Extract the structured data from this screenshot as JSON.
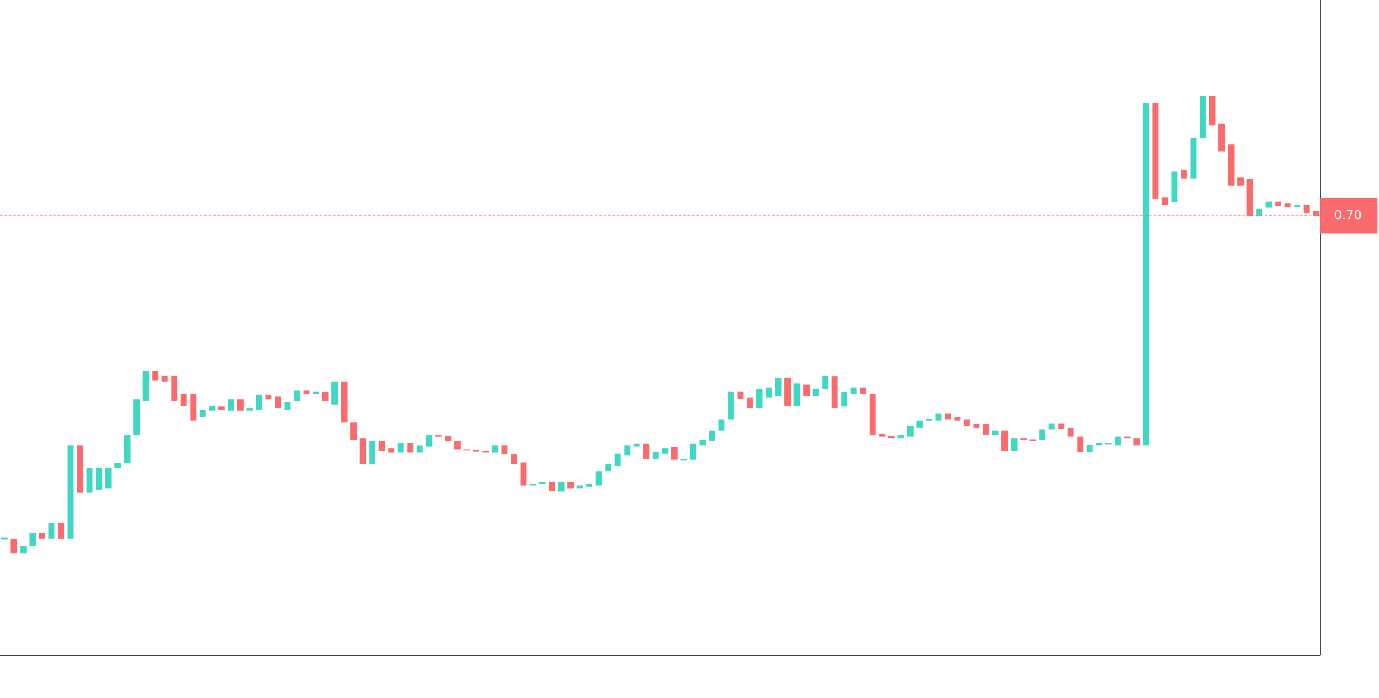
{
  "chart_data": {
    "type": "candlestick",
    "up_color": "#3ed8c3",
    "down_color": "#f96b6c",
    "ylim": [
      0.205,
      0.943
    ],
    "price_line": {
      "value": 0.7,
      "label": "0.70"
    },
    "open": [
      0.336,
      0.336,
      0.32,
      0.328,
      0.343,
      0.336,
      0.354,
      0.336,
      0.441,
      0.388,
      0.391,
      0.393,
      0.416,
      0.421,
      0.453,
      0.491,
      0.525,
      0.52,
      0.52,
      0.499,
      0.499,
      0.473,
      0.48,
      0.485,
      0.48,
      0.493,
      0.48,
      0.481,
      0.498,
      0.496,
      0.481,
      0.491,
      0.503,
      0.499,
      0.501,
      0.487,
      0.513,
      0.467,
      0.449,
      0.42,
      0.446,
      0.438,
      0.433,
      0.444,
      0.433,
      0.44,
      0.453,
      0.452,
      0.446,
      0.437,
      0.436,
      0.435,
      0.433,
      0.441,
      0.431,
      0.422,
      0.396,
      0.398,
      0.4,
      0.389,
      0.4,
      0.393,
      0.395,
      0.396,
      0.412,
      0.418,
      0.43,
      0.44,
      0.443,
      0.426,
      0.432,
      0.439,
      0.425,
      0.425,
      0.441,
      0.446,
      0.458,
      0.47,
      0.502,
      0.495,
      0.483,
      0.495,
      0.497,
      0.517,
      0.486,
      0.51,
      0.497,
      0.505,
      0.519,
      0.485,
      0.499,
      0.506,
      0.499,
      0.454,
      0.452,
      0.449,
      0.451,
      0.461,
      0.469,
      0.469,
      0.477,
      0.473,
      0.47,
      0.465,
      0.465,
      0.453,
      0.458,
      0.435,
      0.449,
      0.448,
      0.447,
      0.459,
      0.466,
      0.461,
      0.451,
      0.434,
      0.441,
      0.443,
      0.441,
      0.451,
      0.449,
      0.441,
      0.827,
      0.721,
      0.715,
      0.752,
      0.742,
      0.788,
      0.835,
      0.804,
      0.78,
      0.743,
      0.741,
      0.7,
      0.709,
      0.716,
      0.714,
      0.71,
      0.712,
      0.705
    ],
    "close": [
      0.337,
      0.32,
      0.328,
      0.343,
      0.336,
      0.354,
      0.336,
      0.441,
      0.388,
      0.416,
      0.416,
      0.416,
      0.421,
      0.453,
      0.493,
      0.525,
      0.514,
      0.513,
      0.491,
      0.486,
      0.469,
      0.481,
      0.486,
      0.481,
      0.493,
      0.48,
      0.483,
      0.498,
      0.493,
      0.483,
      0.49,
      0.503,
      0.499,
      0.502,
      0.491,
      0.513,
      0.467,
      0.447,
      0.42,
      0.446,
      0.435,
      0.433,
      0.444,
      0.433,
      0.441,
      0.453,
      0.451,
      0.446,
      0.437,
      0.436,
      0.435,
      0.433,
      0.441,
      0.431,
      0.42,
      0.396,
      0.398,
      0.4,
      0.39,
      0.4,
      0.393,
      0.396,
      0.398,
      0.412,
      0.42,
      0.432,
      0.441,
      0.443,
      0.426,
      0.434,
      0.438,
      0.425,
      0.426,
      0.443,
      0.447,
      0.458,
      0.47,
      0.502,
      0.494,
      0.483,
      0.505,
      0.506,
      0.517,
      0.486,
      0.511,
      0.497,
      0.505,
      0.52,
      0.483,
      0.501,
      0.506,
      0.499,
      0.453,
      0.451,
      0.449,
      0.453,
      0.463,
      0.469,
      0.471,
      0.477,
      0.47,
      0.469,
      0.463,
      0.461,
      0.453,
      0.458,
      0.435,
      0.449,
      0.447,
      0.446,
      0.459,
      0.466,
      0.46,
      0.451,
      0.434,
      0.442,
      0.444,
      0.444,
      0.451,
      0.449,
      0.441,
      0.827,
      0.719,
      0.712,
      0.75,
      0.742,
      0.788,
      0.835,
      0.802,
      0.772,
      0.734,
      0.734,
      0.7,
      0.708,
      0.716,
      0.711,
      0.71,
      0.712,
      0.703,
      0.7
    ]
  }
}
